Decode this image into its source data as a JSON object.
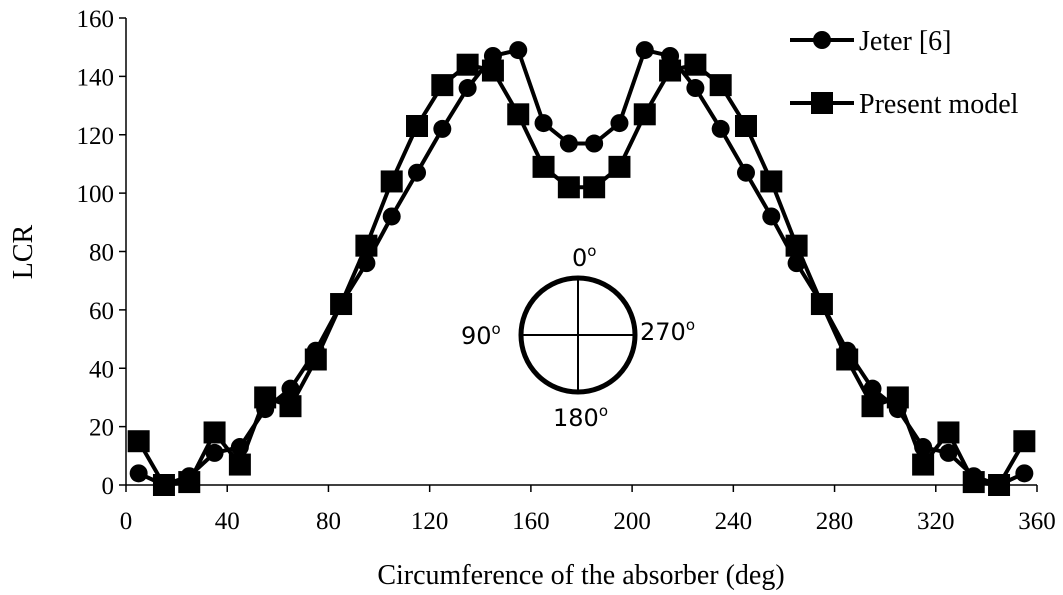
{
  "chart_data": {
    "type": "line",
    "xlabel": "Circumference of the absorber (deg)",
    "ylabel": "LCR",
    "xlim": [
      0,
      360
    ],
    "ylim": [
      0,
      160
    ],
    "xticks": [
      "0",
      "40",
      "80",
      "120",
      "160",
      "200",
      "240",
      "280",
      "320",
      "360"
    ],
    "yticks": [
      "0",
      "20",
      "40",
      "60",
      "80",
      "100",
      "120",
      "140",
      "160"
    ],
    "grid": false,
    "legend_position": "top-right",
    "series": [
      {
        "name": "Jeter [6]",
        "marker": "circle",
        "x": [
          5,
          15,
          25,
          35,
          45,
          55,
          65,
          75,
          85,
          95,
          105,
          115,
          125,
          135,
          145,
          155,
          165,
          175,
          185,
          195,
          205,
          215,
          225,
          235,
          245,
          255,
          265,
          275,
          285,
          295,
          305,
          315,
          325,
          335,
          345,
          355
        ],
        "y": [
          4,
          0,
          3,
          11,
          13,
          26,
          33,
          46,
          62,
          76,
          92,
          107,
          122,
          136,
          147,
          149,
          124,
          117,
          117,
          124,
          149,
          147,
          136,
          122,
          107,
          92,
          76,
          62,
          46,
          33,
          26,
          13,
          11,
          3,
          0,
          4
        ]
      },
      {
        "name": "Present model",
        "marker": "square",
        "x": [
          5,
          15,
          25,
          35,
          45,
          55,
          65,
          75,
          85,
          95,
          105,
          115,
          125,
          135,
          145,
          155,
          165,
          175,
          185,
          195,
          205,
          215,
          225,
          235,
          245,
          255,
          265,
          275,
          285,
          295,
          305,
          315,
          325,
          335,
          345,
          355
        ],
        "y": [
          15,
          0,
          1,
          18,
          7,
          30,
          27,
          43,
          62,
          82,
          104,
          123,
          137,
          144,
          142,
          127,
          109,
          102,
          102,
          109,
          127,
          142,
          144,
          137,
          123,
          104,
          82,
          62,
          43,
          27,
          30,
          7,
          18,
          1,
          0,
          15
        ]
      }
    ],
    "inset": {
      "top_label": "0",
      "left_label": "90",
      "right_label": "270",
      "bottom_label": "180",
      "superscript": "o"
    }
  }
}
